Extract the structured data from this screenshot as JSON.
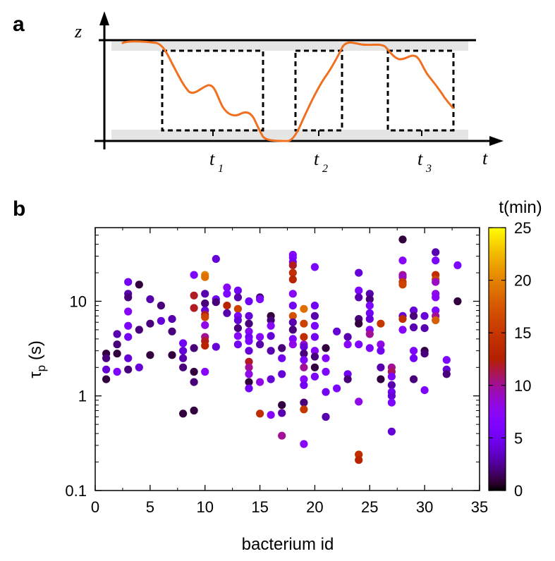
{
  "panel_a": {
    "label": "a",
    "z_label": "z",
    "t_label": "t",
    "t_marks": [
      {
        "base": "t",
        "sub": "1"
      },
      {
        "base": "t",
        "sub": "2"
      },
      {
        "base": "t",
        "sub": "3"
      }
    ],
    "curve_color": "#f07020"
  },
  "chart_data": {
    "type": "scatter",
    "label": "b",
    "xlabel": "bacterium id",
    "ylabel": "τ",
    "ylabel_sub": "p",
    "ylabel_unit": " (s)",
    "xlim": [
      0,
      35
    ],
    "ylim": [
      0.1,
      60
    ],
    "yscale": "log",
    "xticks": [
      0,
      5,
      10,
      15,
      20,
      25,
      30,
      35
    ],
    "yticks": [
      0.1,
      1,
      10
    ],
    "ytick_labels": [
      "0.1",
      "1",
      "10"
    ],
    "colorbar": {
      "title": "t(min)",
      "min": 0,
      "max": 25,
      "ticks": [
        0,
        5,
        10,
        15,
        20,
        25
      ],
      "colormap": "gnuplot-hot"
    },
    "points": [
      [
        1,
        2.8,
        1
      ],
      [
        1,
        2.5,
        2
      ],
      [
        1,
        1.9,
        4
      ],
      [
        1,
        1.5,
        1
      ],
      [
        2,
        4.5,
        3
      ],
      [
        2,
        3.5,
        2
      ],
      [
        2,
        2.8,
        1
      ],
      [
        2,
        1.8,
        6
      ],
      [
        3,
        16,
        5
      ],
      [
        3,
        12,
        3
      ],
      [
        3,
        11,
        2
      ],
      [
        3,
        7.8,
        7
      ],
      [
        3,
        5.5,
        6
      ],
      [
        3,
        4.2,
        5
      ],
      [
        3,
        2.5,
        4
      ],
      [
        3,
        1.9,
        2
      ],
      [
        4,
        15,
        1
      ],
      [
        4,
        5,
        2
      ],
      [
        4,
        2,
        4
      ],
      [
        5,
        10.5,
        3
      ],
      [
        5,
        5.8,
        2
      ],
      [
        5,
        2.7,
        1
      ],
      [
        6,
        9,
        2
      ],
      [
        6,
        6.2,
        4
      ],
      [
        7,
        6.5,
        3
      ],
      [
        7,
        4.8,
        2
      ],
      [
        7,
        2.7,
        1
      ],
      [
        8,
        3.6,
        5
      ],
      [
        8,
        3,
        4
      ],
      [
        8,
        2.5,
        3
      ],
      [
        8,
        2,
        2
      ],
      [
        8,
        0.65,
        1
      ],
      [
        9,
        19,
        6
      ],
      [
        9,
        11.5,
        12
      ],
      [
        9,
        8.5,
        12
      ],
      [
        9,
        3.2,
        2
      ],
      [
        9,
        1.8,
        1
      ],
      [
        9,
        1.4,
        2
      ],
      [
        9,
        0.7,
        1
      ],
      [
        10,
        19,
        20
      ],
      [
        10,
        18,
        19
      ],
      [
        10,
        12,
        3
      ],
      [
        10,
        9.5,
        2
      ],
      [
        10,
        8,
        4
      ],
      [
        10,
        7.2,
        12
      ],
      [
        10,
        6.8,
        16
      ],
      [
        10,
        5.6,
        8
      ],
      [
        10,
        4.2,
        10
      ],
      [
        10,
        3.8,
        12
      ],
      [
        10,
        3.4,
        13
      ],
      [
        10,
        1.8,
        7
      ],
      [
        11,
        28,
        4
      ],
      [
        11,
        10.5,
        5
      ],
      [
        11,
        9.8,
        2
      ],
      [
        11,
        3.3,
        4
      ],
      [
        12,
        14,
        7
      ],
      [
        12,
        12,
        6
      ],
      [
        12,
        9,
        13
      ],
      [
        12,
        7.5,
        3
      ],
      [
        13,
        13,
        5
      ],
      [
        13,
        11,
        3
      ],
      [
        13,
        8.3,
        16
      ],
      [
        13,
        7,
        6
      ],
      [
        13,
        6.3,
        4
      ],
      [
        13,
        5.2,
        2
      ],
      [
        13,
        4.3,
        7
      ],
      [
        13,
        3.5,
        5
      ],
      [
        14,
        10,
        5
      ],
      [
        14,
        7,
        4
      ],
      [
        14,
        5.8,
        2
      ],
      [
        14,
        4.8,
        7
      ],
      [
        14,
        4.2,
        5
      ],
      [
        14,
        3.8,
        6
      ],
      [
        14,
        3,
        4
      ],
      [
        14,
        2.3,
        12
      ],
      [
        14,
        2,
        10
      ],
      [
        14,
        1.7,
        8
      ],
      [
        14,
        1.4,
        1
      ],
      [
        14,
        1.2,
        5
      ],
      [
        15,
        11,
        2
      ],
      [
        15,
        10.5,
        6
      ],
      [
        15,
        4.2,
        7
      ],
      [
        15,
        3.5,
        3
      ],
      [
        15,
        1.4,
        8
      ],
      [
        15,
        0.65,
        14
      ],
      [
        16,
        7,
        1
      ],
      [
        16,
        6.3,
        2
      ],
      [
        16,
        5.5,
        7
      ],
      [
        16,
        4.3,
        4
      ],
      [
        16,
        3,
        3
      ],
      [
        16,
        1.5,
        4
      ],
      [
        16,
        0.63,
        7
      ],
      [
        17,
        3.2,
        2
      ],
      [
        17,
        2.5,
        5
      ],
      [
        17,
        1.7,
        4
      ],
      [
        17,
        0.8,
        1
      ],
      [
        17,
        0.66,
        3
      ],
      [
        17,
        0.38,
        10
      ],
      [
        18,
        31,
        7
      ],
      [
        18,
        29,
        6
      ],
      [
        18,
        26,
        5
      ],
      [
        18,
        24,
        12
      ],
      [
        18,
        20,
        14
      ],
      [
        18,
        17,
        13
      ],
      [
        18,
        12,
        7
      ],
      [
        18,
        9,
        5
      ],
      [
        18,
        7,
        17
      ],
      [
        18,
        6,
        3
      ],
      [
        18,
        5,
        2
      ],
      [
        18,
        4,
        6
      ],
      [
        18,
        3.5,
        8
      ],
      [
        19,
        8.3,
        19
      ],
      [
        19,
        5.8,
        16
      ],
      [
        19,
        4.2,
        14
      ],
      [
        19,
        3.5,
        9
      ],
      [
        19,
        3.3,
        4
      ],
      [
        19,
        2.8,
        2
      ],
      [
        19,
        2.4,
        6
      ],
      [
        19,
        2,
        10
      ],
      [
        19,
        1.5,
        7
      ],
      [
        19,
        1.3,
        5
      ],
      [
        19,
        0.85,
        2
      ],
      [
        19,
        0.72,
        15
      ],
      [
        19,
        0.31,
        7
      ],
      [
        20,
        23,
        6
      ],
      [
        20,
        9,
        5
      ],
      [
        20,
        7,
        3
      ],
      [
        20,
        5.5,
        6
      ],
      [
        20,
        4.2,
        5
      ],
      [
        20,
        3,
        7
      ],
      [
        20,
        2.6,
        2
      ],
      [
        20,
        2,
        1
      ],
      [
        20,
        1.6,
        6
      ],
      [
        21,
        3.2,
        1
      ],
      [
        21,
        2.5,
        7
      ],
      [
        21,
        1.8,
        6
      ],
      [
        21,
        1.1,
        5
      ],
      [
        21,
        0.6,
        3
      ],
      [
        22,
        4.8,
        4
      ],
      [
        22,
        1.2,
        6
      ],
      [
        23,
        4.2,
        3
      ],
      [
        23,
        3.5,
        7
      ],
      [
        23,
        1.7,
        5
      ],
      [
        23,
        1.5,
        2
      ],
      [
        24,
        20,
        4
      ],
      [
        24,
        13,
        6
      ],
      [
        24,
        11,
        3
      ],
      [
        24,
        6.5,
        2
      ],
      [
        24,
        5.8,
        1
      ],
      [
        24,
        3.5,
        6
      ],
      [
        24,
        0.87,
        8
      ],
      [
        24,
        0.24,
        14
      ],
      [
        24,
        0.21,
        13
      ],
      [
        25,
        12,
        3
      ],
      [
        25,
        10.5,
        2
      ],
      [
        25,
        9,
        6
      ],
      [
        25,
        7.5,
        5
      ],
      [
        25,
        6.5,
        4
      ],
      [
        25,
        5,
        7
      ],
      [
        25,
        4.5,
        10
      ],
      [
        25,
        3.2,
        6
      ],
      [
        26,
        5.8,
        15
      ],
      [
        26,
        3.5,
        8
      ],
      [
        26,
        3,
        5
      ],
      [
        26,
        2,
        3
      ],
      [
        26,
        1.5,
        1
      ],
      [
        27,
        2,
        10
      ],
      [
        27,
        1.8,
        11
      ],
      [
        27,
        1.6,
        6
      ],
      [
        27,
        1.3,
        3
      ],
      [
        27,
        1.1,
        5
      ],
      [
        27,
        1,
        4
      ],
      [
        27,
        0.85,
        6
      ],
      [
        27,
        0.42,
        4
      ],
      [
        28,
        45,
        1
      ],
      [
        28,
        27,
        7
      ],
      [
        28,
        19,
        10
      ],
      [
        28,
        18,
        9
      ],
      [
        28,
        16,
        15
      ],
      [
        28,
        15,
        16
      ],
      [
        28,
        7,
        4
      ],
      [
        28,
        6.5,
        14
      ],
      [
        28,
        5,
        7
      ],
      [
        29,
        8,
        4
      ],
      [
        29,
        7,
        2
      ],
      [
        29,
        5.3,
        3
      ],
      [
        29,
        3,
        6
      ],
      [
        29,
        2.5,
        5
      ],
      [
        29,
        1.5,
        2
      ],
      [
        30,
        7,
        4
      ],
      [
        30,
        5.2,
        3
      ],
      [
        30,
        3,
        1
      ],
      [
        30,
        2.8,
        2
      ],
      [
        30,
        1.15,
        6
      ],
      [
        31,
        33,
        3
      ],
      [
        31,
        27,
        6
      ],
      [
        31,
        19,
        14
      ],
      [
        31,
        17,
        16
      ],
      [
        31,
        16,
        9
      ],
      [
        31,
        12,
        8
      ],
      [
        31,
        11,
        7
      ],
      [
        31,
        8,
        6
      ],
      [
        31,
        7,
        10
      ],
      [
        31,
        6.3,
        18
      ],
      [
        32,
        2.4,
        6
      ],
      [
        32,
        1.9,
        4
      ],
      [
        32,
        1.7,
        2
      ],
      [
        33,
        24,
        6
      ],
      [
        33,
        10,
        1
      ]
    ]
  }
}
